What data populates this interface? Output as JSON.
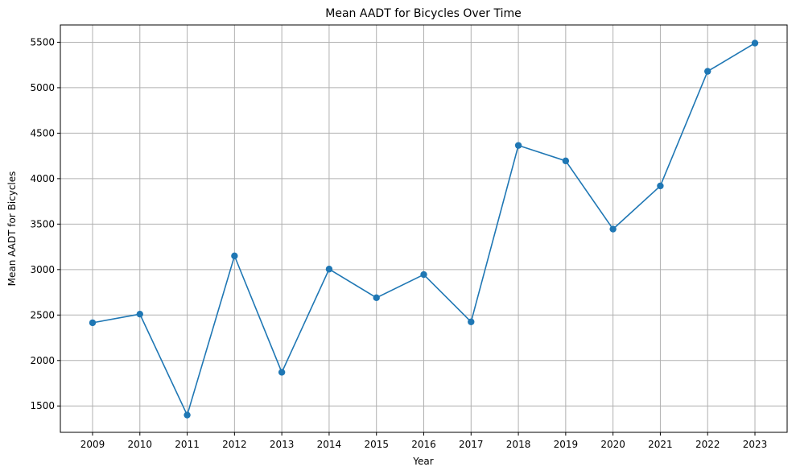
{
  "chart_data": {
    "type": "line",
    "title": "Mean AADT for Bicycles Over Time",
    "xlabel": "Year",
    "ylabel": "Mean AADT for Bicycles",
    "x": [
      "2009",
      "2010",
      "2011",
      "2012",
      "2013",
      "2014",
      "2015",
      "2016",
      "2017",
      "2018",
      "2019",
      "2020",
      "2021",
      "2022",
      "2023"
    ],
    "series": [
      {
        "values": [
          2415,
          2510,
          1400,
          3150,
          1870,
          3005,
          2690,
          2945,
          2425,
          4365,
          4195,
          3445,
          3920,
          5180,
          5490
        ],
        "color": "#1f77b4",
        "marker": "circle"
      }
    ],
    "yticks": [
      1500,
      2000,
      2500,
      3000,
      3500,
      4000,
      4500,
      5000,
      5500
    ],
    "ylim": [
      1210,
      5690
    ],
    "grid": true,
    "colors": {
      "line": "#1f77b4",
      "grid": "#b0b0b0",
      "axis": "#000000"
    }
  }
}
